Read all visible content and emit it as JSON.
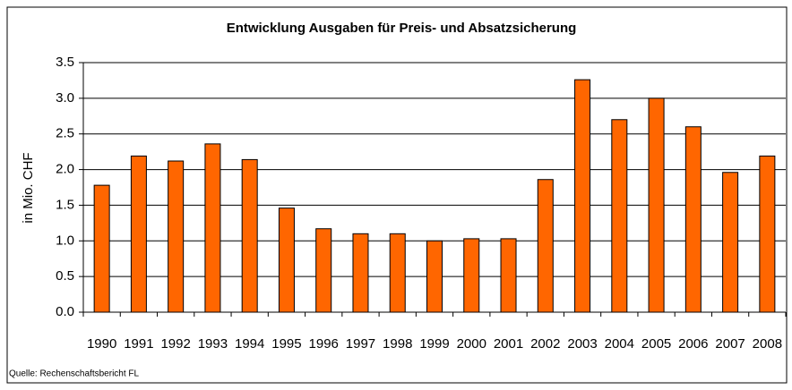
{
  "chart_data": {
    "type": "bar",
    "title": "Entwicklung Ausgaben für Preis- und Absatzsicherung",
    "y_label": "in Mio. CHF",
    "source": "Quelle: Rechenschaftsbericht FL",
    "categories": [
      "1990",
      "1991",
      "1992",
      "1993",
      "1994",
      "1995",
      "1996",
      "1997",
      "1998",
      "1999",
      "2000",
      "2001",
      "2002",
      "2003",
      "2004",
      "2005",
      "2006",
      "2007",
      "2008"
    ],
    "values": [
      1.78,
      2.19,
      2.12,
      2.36,
      2.14,
      1.46,
      1.17,
      1.1,
      1.1,
      1.0,
      1.03,
      1.03,
      1.86,
      3.26,
      2.7,
      3.0,
      2.6,
      1.96,
      2.19
    ],
    "color": "#ff6600",
    "ylim": [
      0,
      3.5
    ],
    "yticks": [
      {
        "value": 0,
        "label": "0.0"
      },
      0.5,
      {
        "value": 1,
        "label": "1.0"
      },
      1.5,
      {
        "value": 2,
        "label": "2.0"
      },
      2.5,
      {
        "value": 3,
        "label": "3.0"
      },
      3.5
    ],
    "grid": true
  }
}
